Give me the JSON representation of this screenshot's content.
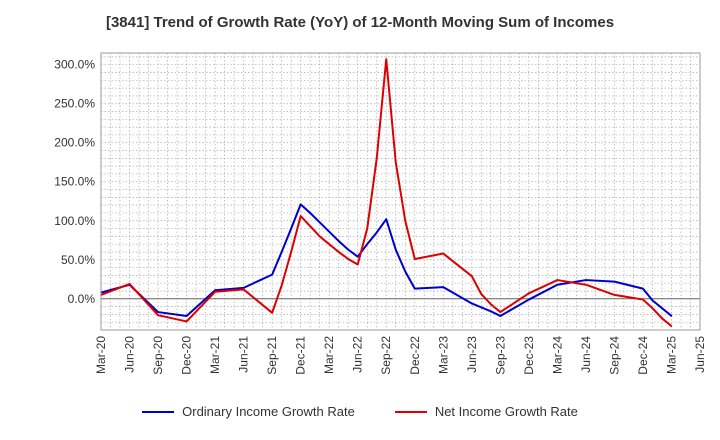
{
  "chart_data": {
    "type": "line",
    "title": "[3841]  Trend of Growth Rate (YoY) of 12-Month Moving Sum of Incomes",
    "xlabel": "",
    "ylabel": "",
    "ylim": [
      -40,
      315
    ],
    "yticks": [
      0,
      50,
      100,
      150,
      200,
      250,
      300
    ],
    "ytick_labels": [
      "0.0%",
      "50.0%",
      "100.0%",
      "150.0%",
      "200.0%",
      "250.0%",
      "300.0%"
    ],
    "x_tick_labels": [
      "Mar-20",
      "Jun-20",
      "Sep-20",
      "Dec-20",
      "Mar-21",
      "Jun-21",
      "Sep-21",
      "Dec-21",
      "Mar-22",
      "Jun-22",
      "Sep-22",
      "Dec-22",
      "Mar-23",
      "Jun-23",
      "Sep-23",
      "Dec-23",
      "Mar-24",
      "Jun-24",
      "Sep-24",
      "Dec-24",
      "Mar-25",
      "Jun-25"
    ],
    "x": [
      "Mar-20",
      "Jun-20",
      "Sep-20",
      "Dec-20",
      "Mar-21",
      "Jun-21",
      "Sep-21",
      "Oct-21",
      "Nov-21",
      "Dec-21",
      "Jan-22",
      "Feb-22",
      "Mar-22",
      "Apr-22",
      "May-22",
      "Jun-22",
      "Jul-22",
      "Aug-22",
      "Sep-22",
      "Oct-22",
      "Nov-22",
      "Dec-22",
      "Mar-23",
      "Jun-23",
      "Jul-23",
      "Aug-23",
      "Sep-23",
      "Dec-23",
      "Mar-24",
      "Jun-24",
      "Sep-24",
      "Dec-24",
      "Jan-25",
      "Feb-25",
      "Mar-25"
    ],
    "grid": true,
    "legend_position": "bottom",
    "series": [
      {
        "name": "Ordinary Income Growth Rate",
        "color": "#0000cc",
        "values": [
          8,
          18,
          -17,
          -22,
          11,
          14,
          31,
          60,
          90,
          121,
          110,
          98,
          86,
          74,
          63,
          54,
          70,
          85,
          102,
          63,
          35,
          13,
          15,
          -6,
          -11,
          -16,
          -22,
          -1,
          18,
          24,
          22,
          13,
          -2,
          -12,
          -22
        ]
      },
      {
        "name": "Net Income Growth Rate",
        "color": "#dd0000",
        "values": [
          5,
          19,
          -21,
          -29,
          9,
          12,
          -18,
          17,
          60,
          106,
          93,
          80,
          70,
          60,
          51,
          44,
          90,
          180,
          307,
          175,
          100,
          51,
          58,
          29,
          6,
          -7,
          -17,
          7,
          24,
          18,
          5,
          -1,
          -12,
          -25,
          -35
        ]
      }
    ]
  }
}
